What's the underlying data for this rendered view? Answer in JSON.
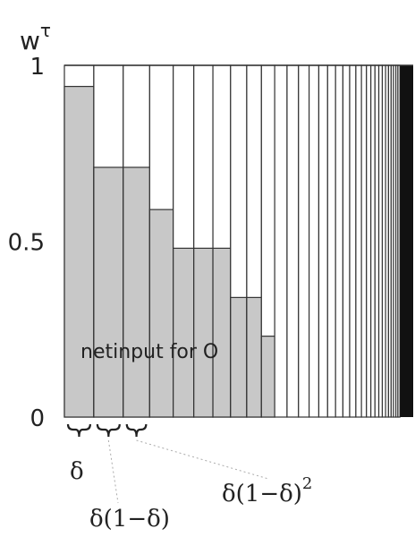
{
  "chart_data": {
    "type": "bar",
    "ylabel": "w",
    "ylabel_superscript": "τ",
    "ylim": [
      0,
      1
    ],
    "yticks": [
      "0",
      "0.5",
      "1"
    ],
    "bars": [
      {
        "width": 1.0,
        "value": 0.94
      },
      {
        "width": 1.0,
        "value": 0.71
      },
      {
        "width": 0.9,
        "value": 0.71
      },
      {
        "width": 0.8,
        "value": 0.59
      },
      {
        "width": 0.7,
        "value": 0.48
      },
      {
        "width": 0.65,
        "value": 0.48
      },
      {
        "width": 0.6,
        "value": 0.48
      },
      {
        "width": 0.55,
        "value": 0.34
      },
      {
        "width": 0.5,
        "value": 0.34
      },
      {
        "width": 0.45,
        "value": 0.23
      },
      {
        "width": 0.42,
        "value": 0
      },
      {
        "width": 0.39,
        "value": 0
      },
      {
        "width": 0.36,
        "value": 0
      },
      {
        "width": 0.33,
        "value": 0
      },
      {
        "width": 0.3,
        "value": 0
      },
      {
        "width": 0.27,
        "value": 0
      },
      {
        "width": 0.25,
        "value": 0
      },
      {
        "width": 0.23,
        "value": 0
      },
      {
        "width": 0.21,
        "value": 0
      },
      {
        "width": 0.19,
        "value": 0
      },
      {
        "width": 0.17,
        "value": 0
      },
      {
        "width": 0.15,
        "value": 0
      },
      {
        "width": 0.14,
        "value": 0
      },
      {
        "width": 0.13,
        "value": 0
      },
      {
        "width": 0.12,
        "value": 0
      },
      {
        "width": 0.11,
        "value": 0
      },
      {
        "width": 0.1,
        "value": 0
      },
      {
        "width": 0.09,
        "value": 0
      },
      {
        "width": 0.08,
        "value": 0
      },
      {
        "width": 0.08,
        "value": 0
      },
      {
        "width": 0.07,
        "value": 0
      },
      {
        "width": 0.07,
        "value": 0
      }
    ],
    "filled_tail_width": 0.45,
    "inner_label": "netinput for O",
    "annotations": [
      {
        "base": "δ",
        "power": ""
      },
      {
        "base": "δ(1−δ)",
        "power": ""
      },
      {
        "base": "δ(1−δ)",
        "power": "2"
      }
    ],
    "colors": {
      "fill": "#c8c8c8",
      "line": "#333333",
      "tail": "#111111"
    }
  }
}
